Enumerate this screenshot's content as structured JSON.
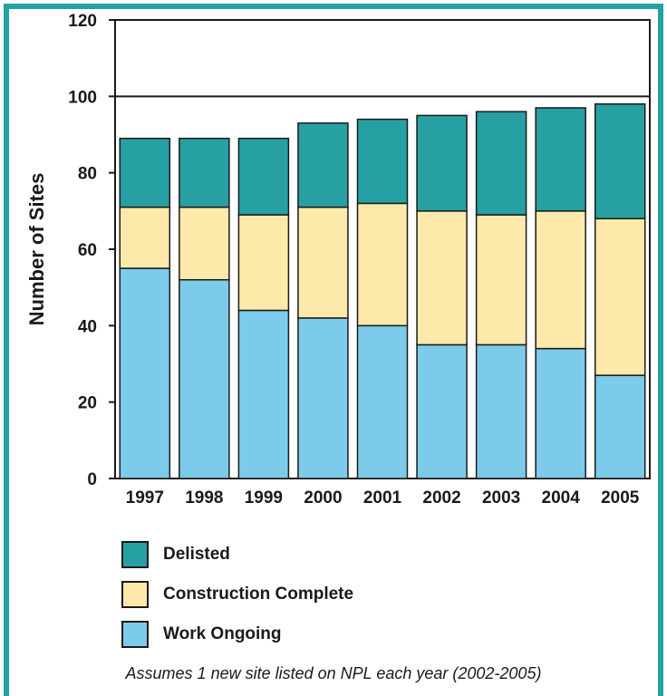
{
  "chart_data": {
    "type": "bar",
    "stacked": true,
    "categories": [
      "1997",
      "1998",
      "1999",
      "2000",
      "2001",
      "2002",
      "2003",
      "2004",
      "2005"
    ],
    "series": [
      {
        "name": "Work Ongoing",
        "color": "#7ccbea",
        "values": [
          55,
          52,
          44,
          42,
          40,
          35,
          35,
          34,
          27
        ]
      },
      {
        "name": "Construction Complete",
        "color": "#fde9aa",
        "values": [
          16,
          19,
          25,
          29,
          32,
          35,
          34,
          36,
          41
        ]
      },
      {
        "name": "Delisted",
        "color": "#27a0a4",
        "values": [
          18,
          18,
          20,
          22,
          22,
          25,
          27,
          27,
          30
        ]
      }
    ],
    "ylabel": "Number of Sites",
    "ylim": [
      0,
      120
    ],
    "yticks": [
      0,
      20,
      40,
      60,
      80,
      100,
      120
    ],
    "reference_line": 100,
    "grid": false,
    "legend_position": "bottom-left",
    "legend_order": [
      "Delisted",
      "Construction Complete",
      "Work Ongoing"
    ]
  },
  "footnote": "Assumes 1 new site listed on NPL each year (2002-2005)",
  "frame_color": "#27a0a4"
}
